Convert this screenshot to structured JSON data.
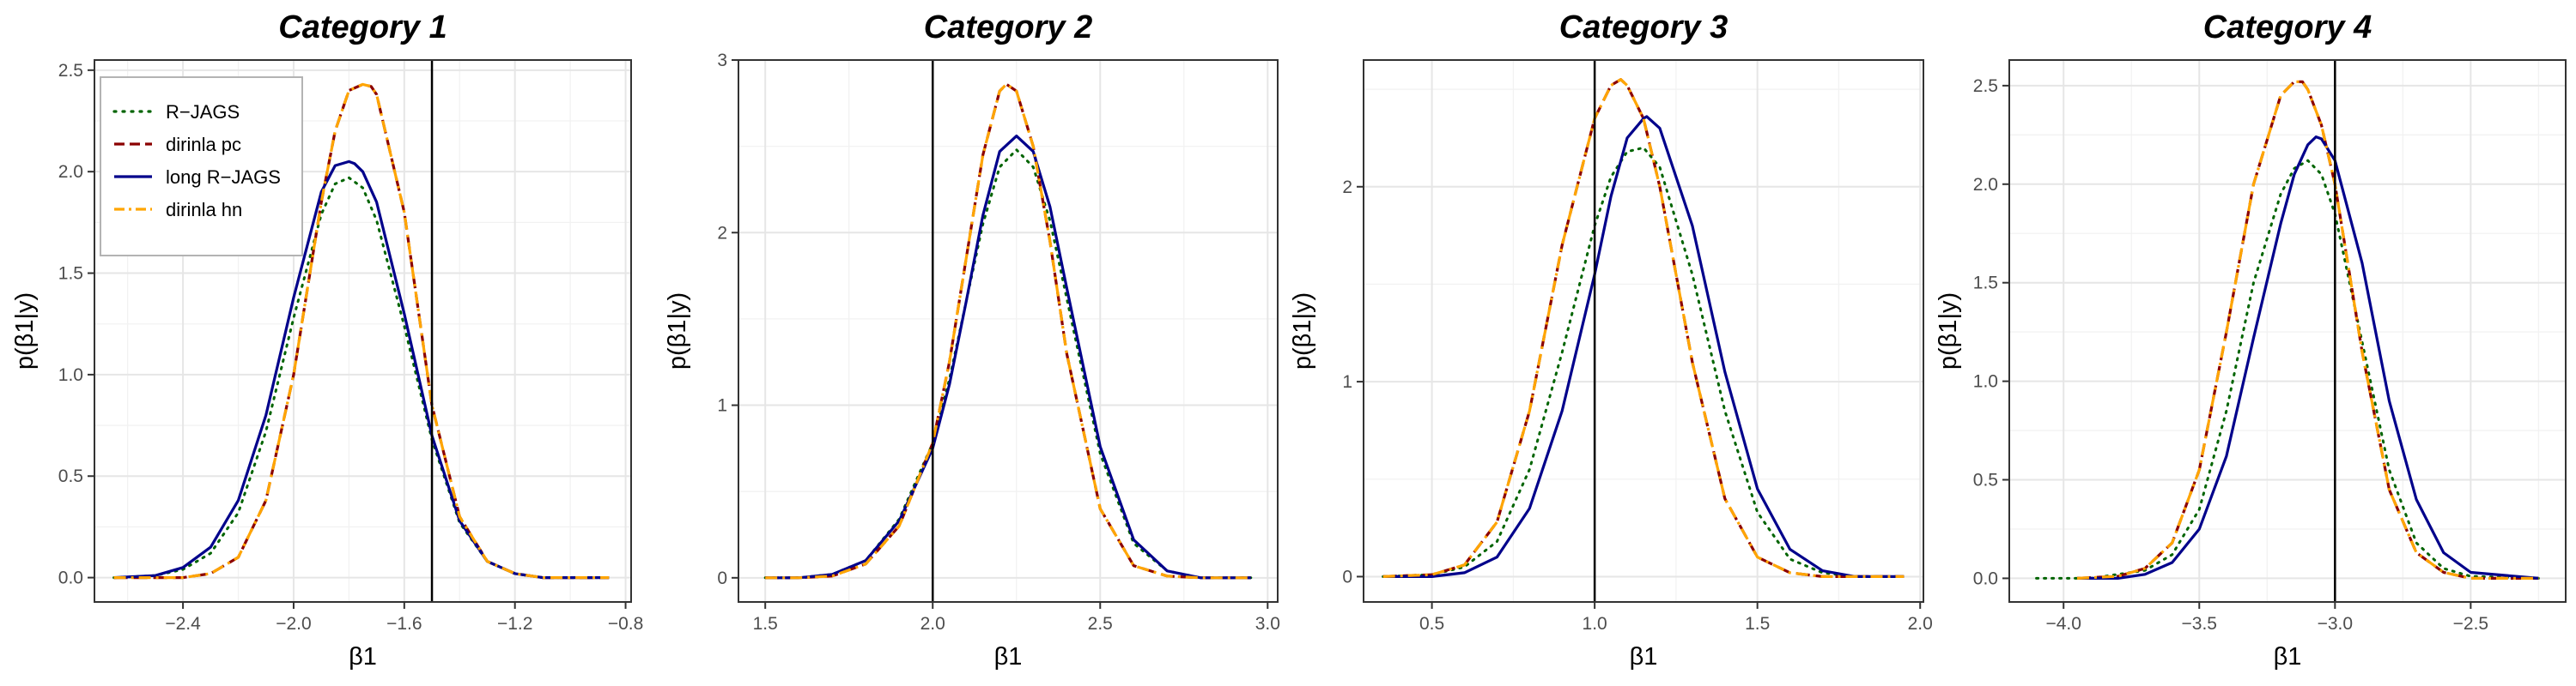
{
  "chart_data": [
    {
      "type": "line",
      "title": "Category 1",
      "xlabel": "β1",
      "ylabel": "p(β1|y)",
      "xlim": [
        -2.72,
        -0.78
      ],
      "ylim": [
        -0.12,
        2.55
      ],
      "xticks": [
        -2.4,
        -2.0,
        -1.6,
        -1.2,
        -0.8
      ],
      "yticks": [
        0.0,
        0.5,
        1.0,
        1.5,
        2.0,
        2.5
      ],
      "vline": -1.5,
      "grid": true,
      "legend": "top-left",
      "series": [
        {
          "name": "R−JAGS",
          "color": "#006400",
          "dash": "dotted",
          "x": [
            -2.65,
            -2.5,
            -2.4,
            -2.3,
            -2.2,
            -2.1,
            -2.0,
            -1.9,
            -1.85,
            -1.8,
            -1.75,
            -1.7,
            -1.6,
            -1.5,
            -1.4,
            -1.3,
            -1.2,
            -1.1,
            -1.0,
            -0.86
          ],
          "y": [
            0.0,
            0.01,
            0.04,
            0.12,
            0.32,
            0.72,
            1.28,
            1.79,
            1.94,
            1.97,
            1.92,
            1.76,
            1.24,
            0.68,
            0.27,
            0.08,
            0.02,
            0.0,
            0.0,
            0.0
          ]
        },
        {
          "name": "dirinla pc",
          "color": "#8b0000",
          "dash": "longdash",
          "x": [
            -2.65,
            -2.5,
            -2.4,
            -2.3,
            -2.2,
            -2.1,
            -2.0,
            -1.9,
            -1.85,
            -1.8,
            -1.75,
            -1.72,
            -1.7,
            -1.6,
            -1.5,
            -1.4,
            -1.3,
            -1.2,
            -1.1,
            -1.0,
            -0.86
          ],
          "y": [
            0.0,
            0.0,
            0.0,
            0.02,
            0.1,
            0.38,
            1.0,
            1.85,
            2.2,
            2.4,
            2.43,
            2.42,
            2.38,
            1.8,
            0.85,
            0.3,
            0.08,
            0.02,
            0.0,
            0.0,
            0.0
          ]
        },
        {
          "name": "long R−JAGS",
          "color": "#00008b",
          "dash": "solid",
          "x": [
            -2.65,
            -2.5,
            -2.4,
            -2.3,
            -2.2,
            -2.1,
            -2.0,
            -1.9,
            -1.85,
            -1.8,
            -1.78,
            -1.75,
            -1.7,
            -1.6,
            -1.5,
            -1.4,
            -1.3,
            -1.2,
            -1.1,
            -1.0,
            -0.86
          ],
          "y": [
            0.0,
            0.01,
            0.05,
            0.15,
            0.38,
            0.8,
            1.38,
            1.9,
            2.03,
            2.05,
            2.04,
            2.0,
            1.85,
            1.3,
            0.7,
            0.28,
            0.08,
            0.02,
            0.0,
            0.0,
            0.0
          ]
        },
        {
          "name": "dirinla hn",
          "color": "#ffa500",
          "dash": "dashdot",
          "x": [
            -2.65,
            -2.5,
            -2.4,
            -2.3,
            -2.2,
            -2.1,
            -2.0,
            -1.9,
            -1.85,
            -1.8,
            -1.75,
            -1.72,
            -1.7,
            -1.6,
            -1.5,
            -1.4,
            -1.3,
            -1.2,
            -1.1,
            -1.0,
            -0.86
          ],
          "y": [
            0.0,
            0.0,
            0.0,
            0.02,
            0.1,
            0.38,
            1.0,
            1.85,
            2.2,
            2.4,
            2.43,
            2.42,
            2.38,
            1.8,
            0.85,
            0.3,
            0.08,
            0.02,
            0.0,
            0.0,
            0.0
          ]
        }
      ]
    },
    {
      "type": "line",
      "title": "Category 2",
      "xlabel": "β1",
      "ylabel": "p(β1|y)",
      "xlim": [
        1.42,
        3.03
      ],
      "ylim": [
        -0.14,
        3.0
      ],
      "xticks": [
        1.5,
        2.0,
        2.5,
        3.0
      ],
      "yticks": [
        0,
        1,
        2,
        3
      ],
      "vline": 2.0,
      "grid": true,
      "series": [
        {
          "name": "R−JAGS",
          "color": "#006400",
          "dash": "dotted",
          "x": [
            1.5,
            1.6,
            1.7,
            1.8,
            1.9,
            2.0,
            2.05,
            2.1,
            2.15,
            2.2,
            2.25,
            2.3,
            2.35,
            2.4,
            2.5,
            2.6,
            2.7,
            2.8,
            2.95
          ],
          "y": [
            0.0,
            0.0,
            0.02,
            0.1,
            0.34,
            0.78,
            1.15,
            1.6,
            2.05,
            2.38,
            2.48,
            2.38,
            2.07,
            1.62,
            0.72,
            0.2,
            0.04,
            0.0,
            0.0
          ]
        },
        {
          "name": "dirinla pc",
          "color": "#8b0000",
          "dash": "longdash",
          "x": [
            1.5,
            1.6,
            1.7,
            1.8,
            1.9,
            2.0,
            2.05,
            2.1,
            2.15,
            2.2,
            2.22,
            2.25,
            2.3,
            2.35,
            2.4,
            2.5,
            2.6,
            2.7,
            2.8,
            2.95
          ],
          "y": [
            0.0,
            0.0,
            0.01,
            0.08,
            0.3,
            0.78,
            1.25,
            1.85,
            2.45,
            2.82,
            2.86,
            2.82,
            2.5,
            1.95,
            1.3,
            0.4,
            0.07,
            0.01,
            0.0,
            0.0
          ]
        },
        {
          "name": "long R−JAGS",
          "color": "#00008b",
          "dash": "solid",
          "x": [
            1.5,
            1.6,
            1.7,
            1.8,
            1.9,
            2.0,
            2.05,
            2.1,
            2.15,
            2.2,
            2.25,
            2.3,
            2.35,
            2.4,
            2.5,
            2.6,
            2.7,
            2.8,
            2.95
          ],
          "y": [
            0.0,
            0.0,
            0.02,
            0.1,
            0.33,
            0.75,
            1.12,
            1.6,
            2.1,
            2.47,
            2.56,
            2.47,
            2.15,
            1.68,
            0.76,
            0.22,
            0.04,
            0.0,
            0.0
          ]
        },
        {
          "name": "dirinla hn",
          "color": "#ffa500",
          "dash": "dashdot",
          "x": [
            1.5,
            1.6,
            1.7,
            1.8,
            1.9,
            2.0,
            2.05,
            2.1,
            2.15,
            2.2,
            2.22,
            2.25,
            2.3,
            2.35,
            2.4,
            2.5,
            2.6,
            2.7,
            2.8,
            2.95
          ],
          "y": [
            0.0,
            0.0,
            0.01,
            0.08,
            0.3,
            0.78,
            1.25,
            1.85,
            2.45,
            2.82,
            2.86,
            2.82,
            2.5,
            1.95,
            1.3,
            0.4,
            0.07,
            0.01,
            0.0,
            0.0
          ]
        }
      ]
    },
    {
      "type": "line",
      "title": "Category 3",
      "xlabel": "β1",
      "ylabel": "p(β1|y)",
      "xlim": [
        0.29,
        2.01
      ],
      "ylim": [
        -0.13,
        2.65
      ],
      "xticks": [
        0.5,
        1.0,
        1.5,
        2.0
      ],
      "yticks": [
        0,
        1,
        2
      ],
      "vline": 1.0,
      "grid": true,
      "series": [
        {
          "name": "R−JAGS",
          "color": "#006400",
          "dash": "dotted",
          "x": [
            0.35,
            0.5,
            0.6,
            0.7,
            0.8,
            0.9,
            1.0,
            1.05,
            1.1,
            1.15,
            1.2,
            1.3,
            1.4,
            1.5,
            1.6,
            1.7,
            1.8,
            1.95
          ],
          "y": [
            0.0,
            0.01,
            0.05,
            0.18,
            0.55,
            1.15,
            1.8,
            2.05,
            2.18,
            2.2,
            2.1,
            1.55,
            0.85,
            0.33,
            0.09,
            0.02,
            0.0,
            0.0
          ]
        },
        {
          "name": "dirinla pc",
          "color": "#8b0000",
          "dash": "longdash",
          "x": [
            0.35,
            0.5,
            0.6,
            0.7,
            0.8,
            0.9,
            1.0,
            1.05,
            1.08,
            1.1,
            1.15,
            1.2,
            1.3,
            1.4,
            1.5,
            1.6,
            1.7,
            1.8,
            1.95
          ],
          "y": [
            0.0,
            0.01,
            0.06,
            0.28,
            0.85,
            1.7,
            2.35,
            2.52,
            2.55,
            2.52,
            2.35,
            2.0,
            1.1,
            0.4,
            0.1,
            0.02,
            0.0,
            0.0,
            0.0
          ]
        },
        {
          "name": "long R−JAGS",
          "color": "#00008b",
          "dash": "solid",
          "x": [
            0.35,
            0.5,
            0.6,
            0.7,
            0.8,
            0.9,
            1.0,
            1.05,
            1.1,
            1.15,
            1.16,
            1.2,
            1.3,
            1.4,
            1.5,
            1.6,
            1.7,
            1.8,
            1.95
          ],
          "y": [
            0.0,
            0.0,
            0.02,
            0.1,
            0.35,
            0.85,
            1.55,
            1.95,
            2.25,
            2.35,
            2.36,
            2.3,
            1.8,
            1.05,
            0.45,
            0.14,
            0.03,
            0.0,
            0.0
          ]
        },
        {
          "name": "dirinla hn",
          "color": "#ffa500",
          "dash": "dashdot",
          "x": [
            0.35,
            0.5,
            0.6,
            0.7,
            0.8,
            0.9,
            1.0,
            1.05,
            1.08,
            1.1,
            1.15,
            1.2,
            1.3,
            1.4,
            1.5,
            1.6,
            1.7,
            1.8,
            1.95
          ],
          "y": [
            0.0,
            0.01,
            0.06,
            0.28,
            0.85,
            1.7,
            2.35,
            2.52,
            2.55,
            2.52,
            2.35,
            2.0,
            1.1,
            0.4,
            0.1,
            0.02,
            0.0,
            0.0,
            0.0
          ]
        }
      ]
    },
    {
      "type": "line",
      "title": "Category 4",
      "xlabel": "β1",
      "ylabel": "p(β1|y)",
      "xlim": [
        -4.2,
        -2.15
      ],
      "ylim": [
        -0.12,
        2.63
      ],
      "xticks": [
        -4.0,
        -3.5,
        -3.0,
        -2.5
      ],
      "yticks": [
        0.0,
        0.5,
        1.0,
        1.5,
        2.0,
        2.5
      ],
      "vline": -3.0,
      "grid": true,
      "series": [
        {
          "name": "R−JAGS",
          "color": "#006400",
          "dash": "dotted",
          "x": [
            -4.1,
            -3.9,
            -3.7,
            -3.6,
            -3.5,
            -3.4,
            -3.3,
            -3.2,
            -3.15,
            -3.1,
            -3.05,
            -3.0,
            -2.9,
            -2.8,
            -2.7,
            -2.6,
            -2.5,
            -2.25
          ],
          "y": [
            0.0,
            0.0,
            0.04,
            0.12,
            0.35,
            0.85,
            1.5,
            1.95,
            2.08,
            2.12,
            2.05,
            1.85,
            1.2,
            0.55,
            0.18,
            0.05,
            0.01,
            0.0
          ]
        },
        {
          "name": "dirinla pc",
          "color": "#8b0000",
          "dash": "longdash",
          "x": [
            -3.95,
            -3.8,
            -3.7,
            -3.6,
            -3.5,
            -3.4,
            -3.3,
            -3.2,
            -3.15,
            -3.12,
            -3.1,
            -3.05,
            -3.0,
            -2.9,
            -2.8,
            -2.7,
            -2.6,
            -2.5,
            -2.25
          ],
          "y": [
            0.0,
            0.01,
            0.05,
            0.18,
            0.55,
            1.25,
            2.0,
            2.45,
            2.52,
            2.52,
            2.48,
            2.3,
            2.0,
            1.15,
            0.45,
            0.13,
            0.03,
            0.0,
            0.0
          ]
        },
        {
          "name": "long R−JAGS",
          "color": "#00008b",
          "dash": "solid",
          "x": [
            -3.95,
            -3.8,
            -3.7,
            -3.6,
            -3.5,
            -3.4,
            -3.3,
            -3.2,
            -3.15,
            -3.1,
            -3.07,
            -3.05,
            -3.0,
            -2.9,
            -2.8,
            -2.7,
            -2.6,
            -2.5,
            -2.25
          ],
          "y": [
            0.0,
            0.0,
            0.02,
            0.08,
            0.25,
            0.62,
            1.22,
            1.8,
            2.05,
            2.2,
            2.24,
            2.23,
            2.12,
            1.6,
            0.9,
            0.4,
            0.13,
            0.03,
            0.0
          ]
        },
        {
          "name": "dirinla hn",
          "color": "#ffa500",
          "dash": "dashdot",
          "x": [
            -3.95,
            -3.8,
            -3.7,
            -3.6,
            -3.5,
            -3.4,
            -3.3,
            -3.2,
            -3.15,
            -3.12,
            -3.1,
            -3.05,
            -3.0,
            -2.9,
            -2.8,
            -2.7,
            -2.6,
            -2.5,
            -2.25
          ],
          "y": [
            0.0,
            0.01,
            0.05,
            0.18,
            0.55,
            1.25,
            2.0,
            2.45,
            2.52,
            2.52,
            2.48,
            2.3,
            2.0,
            1.15,
            0.45,
            0.13,
            0.03,
            0.0,
            0.0
          ]
        }
      ]
    }
  ]
}
